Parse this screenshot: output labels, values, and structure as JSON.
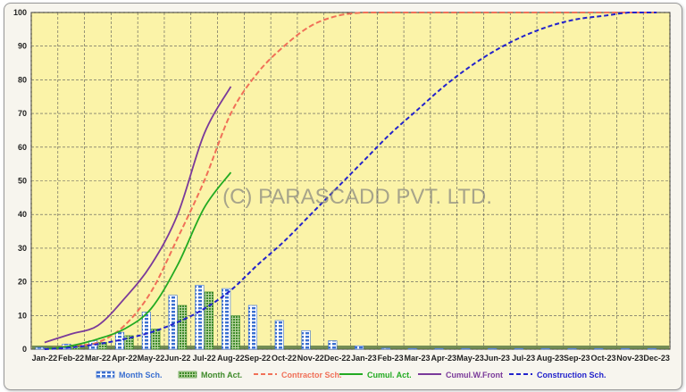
{
  "chart_data": {
    "type": "bar",
    "title": "",
    "xlabel": "",
    "ylabel": "",
    "ylim": [
      0,
      100
    ],
    "yticks": [
      "0",
      "10",
      "20",
      "30",
      "40",
      "50",
      "60",
      "70",
      "80",
      "90",
      "100"
    ],
    "categories": [
      "Jan-22",
      "Feb-22",
      "Mar-22",
      "Apr-22",
      "May-22",
      "Jun-22",
      "Jul-22",
      "Aug-22",
      "Sep-22",
      "Oct-22",
      "Nov-22",
      "Dec-22",
      "Jan-23",
      "Feb-23",
      "Mar-23",
      "Apr-23",
      "May-23",
      "Jun-23",
      "Jul-23",
      "Aug-23",
      "Sep-23",
      "Oct-23",
      "Nov-23",
      "Dec-23"
    ],
    "grid": true,
    "legend": "bottom",
    "watermark": "(C) PARASCADD PVT. LTD.",
    "bars": [
      {
        "name": "Month Sch.",
        "color": "#3a6fd0",
        "values": [
          0.5,
          1.5,
          2.5,
          5,
          11,
          16,
          19,
          18,
          13,
          8.5,
          5.5,
          2.5,
          1,
          0.3,
          0.2,
          0.2,
          0.2,
          0.2,
          0.2,
          0.2,
          0.2,
          0.2,
          0.2,
          0.2
        ]
      },
      {
        "name": "Month Act.",
        "color": "#3e8a2a",
        "values": [
          0.5,
          1,
          2,
          4,
          6,
          13,
          17,
          10,
          0,
          0,
          0,
          0,
          0,
          0,
          0,
          0,
          0,
          0,
          0,
          0,
          0,
          0,
          0,
          0
        ]
      }
    ],
    "series": [
      {
        "name": "Contractor Sch.",
        "color": "#f07058",
        "style": "dashed",
        "values": [
          0,
          1,
          2,
          7,
          17,
          33,
          50,
          70,
          82,
          90,
          96,
          99,
          100,
          100,
          100,
          100,
          100,
          100,
          100,
          100,
          100,
          100,
          100,
          100
        ]
      },
      {
        "name": "Cumul. Act.",
        "color": "#22aa22",
        "style": "solid",
        "values": [
          0,
          1,
          3,
          6,
          12,
          25,
          42,
          52.5,
          null,
          null,
          null,
          null,
          null,
          null,
          null,
          null,
          null,
          null,
          null,
          null,
          null,
          null,
          null,
          null
        ]
      },
      {
        "name": "Cumul.W.Front",
        "color": "#7a3a9a",
        "style": "solid",
        "values": [
          2,
          4.5,
          7,
          15,
          25,
          40,
          64,
          78,
          null,
          null,
          null,
          null,
          null,
          null,
          null,
          null,
          null,
          null,
          null,
          null,
          null,
          null,
          null,
          null
        ]
      },
      {
        "name": "Construction Sch.",
        "color": "#2222cc",
        "style": "dashed",
        "values": [
          0,
          0.5,
          1.5,
          3,
          5,
          8,
          12,
          17.5,
          25,
          32,
          40,
          48,
          56,
          64,
          71,
          78,
          84,
          89,
          93,
          96,
          98,
          99,
          100,
          100
        ]
      }
    ]
  }
}
